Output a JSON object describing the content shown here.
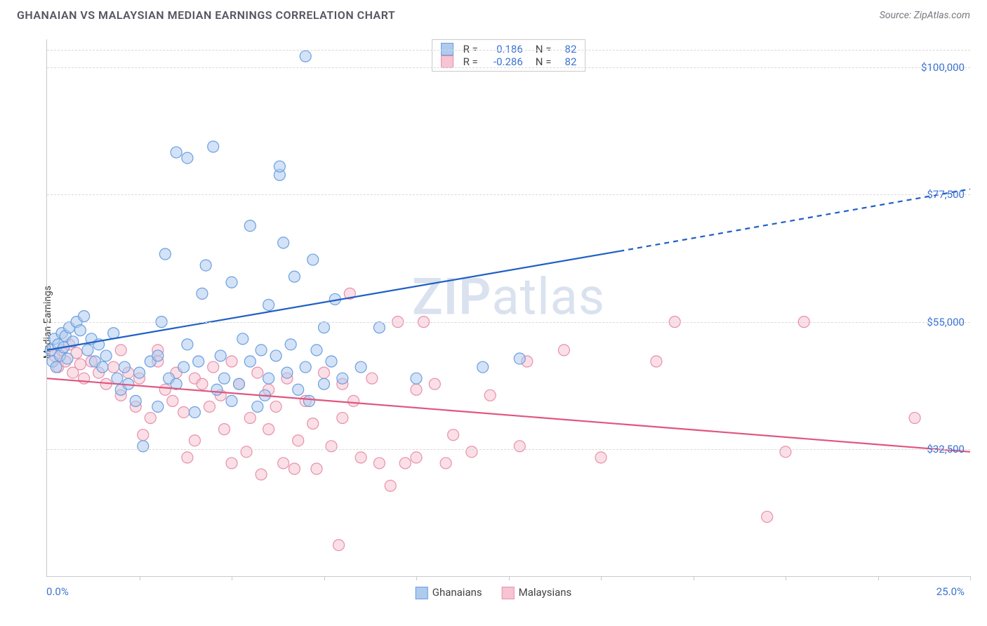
{
  "header": {
    "title": "GHANAIAN VS MALAYSIAN MEDIAN EARNINGS CORRELATION CHART",
    "source": "Source: ZipAtlas.com"
  },
  "chart": {
    "type": "scatter",
    "ylabel": "Median Earnings",
    "watermark": {
      "bold": "ZIP",
      "rest": "atlas"
    },
    "xlim": [
      0,
      25
    ],
    "ylim": [
      10000,
      105000
    ],
    "x_tick_marks": [
      2.5,
      5,
      7.5,
      10,
      12.5,
      15,
      17.5,
      20,
      22.5,
      25
    ],
    "x_min_label": "0.0%",
    "x_max_label": "25.0%",
    "y_ticks": [
      {
        "v": 32500,
        "label": "$32,500"
      },
      {
        "v": 55000,
        "label": "$55,000"
      },
      {
        "v": 77500,
        "label": "$77,500"
      },
      {
        "v": 100000,
        "label": "$100,000"
      }
    ],
    "colors": {
      "grid": "#d8d8dd",
      "axis": "#c9c9cf",
      "tick_text": "#3b73d1",
      "series_a_fill": "#aecbee",
      "series_a_stroke": "#6a9fe0",
      "series_a_line": "#1f5fc4",
      "series_b_fill": "#f6c4d2",
      "series_b_stroke": "#e88fa9",
      "series_b_line": "#e0567f"
    },
    "marker": {
      "radius": 8,
      "fill_opacity": 0.55,
      "stroke_width": 1.2
    },
    "correlation_box": {
      "rows": [
        {
          "series": "a",
          "r_label": "R =",
          "r": "0.186",
          "n_label": "N =",
          "n": "82"
        },
        {
          "series": "b",
          "r_label": "R =",
          "r": "-0.286",
          "n_label": "N =",
          "n": "82"
        }
      ]
    },
    "bottom_legend": [
      {
        "series": "a",
        "label": "Ghanaians"
      },
      {
        "series": "b",
        "label": "Malaysians"
      }
    ],
    "trend_lines": {
      "a": {
        "solid": [
          [
            0,
            50000
          ],
          [
            15.5,
            67500
          ]
        ],
        "dashed": [
          [
            15.5,
            67500
          ],
          [
            25,
            78500
          ]
        ]
      },
      "b": {
        "solid": [
          [
            0,
            45000
          ],
          [
            25,
            32000
          ]
        ]
      }
    },
    "series": {
      "a": [
        [
          0.1,
          50000
        ],
        [
          0.15,
          48000
        ],
        [
          0.2,
          52000
        ],
        [
          0.25,
          47000
        ],
        [
          0.3,
          51000
        ],
        [
          0.35,
          49000
        ],
        [
          0.4,
          53000
        ],
        [
          0.45,
          50500
        ],
        [
          0.5,
          52500
        ],
        [
          0.55,
          48500
        ],
        [
          0.6,
          54000
        ],
        [
          0.7,
          51500
        ],
        [
          0.8,
          55000
        ],
        [
          0.9,
          53500
        ],
        [
          1.0,
          56000
        ],
        [
          1.1,
          50000
        ],
        [
          1.2,
          52000
        ],
        [
          1.3,
          48000
        ],
        [
          1.4,
          51000
        ],
        [
          1.5,
          47000
        ],
        [
          1.6,
          49000
        ],
        [
          1.8,
          53000
        ],
        [
          1.9,
          45000
        ],
        [
          2.0,
          43000
        ],
        [
          2.1,
          47000
        ],
        [
          2.2,
          44000
        ],
        [
          2.4,
          41000
        ],
        [
          2.5,
          46000
        ],
        [
          2.6,
          33000
        ],
        [
          2.8,
          48000
        ],
        [
          3.0,
          40000
        ],
        [
          3.0,
          49000
        ],
        [
          3.1,
          55000
        ],
        [
          3.2,
          67000
        ],
        [
          3.3,
          45000
        ],
        [
          3.5,
          44000
        ],
        [
          3.5,
          85000
        ],
        [
          3.7,
          47000
        ],
        [
          3.8,
          51000
        ],
        [
          3.8,
          84000
        ],
        [
          4.0,
          39000
        ],
        [
          4.1,
          48000
        ],
        [
          4.2,
          60000
        ],
        [
          4.3,
          65000
        ],
        [
          4.5,
          86000
        ],
        [
          4.6,
          43000
        ],
        [
          4.7,
          49000
        ],
        [
          4.8,
          45000
        ],
        [
          5.0,
          41000
        ],
        [
          5.0,
          62000
        ],
        [
          5.2,
          44000
        ],
        [
          5.3,
          52000
        ],
        [
          5.5,
          48000
        ],
        [
          5.5,
          72000
        ],
        [
          5.7,
          40000
        ],
        [
          5.8,
          50000
        ],
        [
          5.9,
          42000
        ],
        [
          6.0,
          45000
        ],
        [
          6.0,
          58000
        ],
        [
          6.2,
          49000
        ],
        [
          6.3,
          81000
        ],
        [
          6.3,
          82500
        ],
        [
          6.4,
          69000
        ],
        [
          6.5,
          46000
        ],
        [
          6.6,
          51000
        ],
        [
          6.7,
          63000
        ],
        [
          6.8,
          43000
        ],
        [
          7.0,
          47000
        ],
        [
          7.0,
          102000
        ],
        [
          7.1,
          41000
        ],
        [
          7.2,
          66000
        ],
        [
          7.3,
          50000
        ],
        [
          7.5,
          44000
        ],
        [
          7.5,
          54000
        ],
        [
          7.7,
          48000
        ],
        [
          7.8,
          59000
        ],
        [
          8.0,
          45000
        ],
        [
          8.5,
          47000
        ],
        [
          9.0,
          54000
        ],
        [
          10.0,
          45000
        ],
        [
          11.8,
          47000
        ],
        [
          12.8,
          48500
        ]
      ],
      "b": [
        [
          0.2,
          49000
        ],
        [
          0.3,
          47000
        ],
        [
          0.4,
          50000
        ],
        [
          0.5,
          48000
        ],
        [
          0.6,
          51000
        ],
        [
          0.7,
          46000
        ],
        [
          0.8,
          49500
        ],
        [
          0.9,
          47500
        ],
        [
          1.0,
          45000
        ],
        [
          1.2,
          48000
        ],
        [
          1.4,
          46000
        ],
        [
          1.6,
          44000
        ],
        [
          1.8,
          47000
        ],
        [
          2.0,
          42000
        ],
        [
          2.0,
          50000
        ],
        [
          2.2,
          46000
        ],
        [
          2.4,
          40000
        ],
        [
          2.5,
          45000
        ],
        [
          2.6,
          35000
        ],
        [
          2.8,
          38000
        ],
        [
          3.0,
          48000
        ],
        [
          3.0,
          50000
        ],
        [
          3.2,
          43000
        ],
        [
          3.4,
          41000
        ],
        [
          3.5,
          46000
        ],
        [
          3.7,
          39000
        ],
        [
          3.8,
          31000
        ],
        [
          4.0,
          45000
        ],
        [
          4.0,
          34000
        ],
        [
          4.2,
          44000
        ],
        [
          4.4,
          40000
        ],
        [
          4.5,
          47000
        ],
        [
          4.7,
          42000
        ],
        [
          4.8,
          36000
        ],
        [
          5.0,
          48000
        ],
        [
          5.0,
          30000
        ],
        [
          5.2,
          44000
        ],
        [
          5.4,
          32000
        ],
        [
          5.5,
          38000
        ],
        [
          5.7,
          46000
        ],
        [
          5.8,
          28000
        ],
        [
          6.0,
          43000
        ],
        [
          6.0,
          36000
        ],
        [
          6.2,
          40000
        ],
        [
          6.4,
          30000
        ],
        [
          6.5,
          45000
        ],
        [
          6.7,
          29000
        ],
        [
          6.8,
          34000
        ],
        [
          7.0,
          41000
        ],
        [
          7.2,
          37000
        ],
        [
          7.3,
          29000
        ],
        [
          7.5,
          46000
        ],
        [
          7.7,
          33000
        ],
        [
          7.9,
          15500
        ],
        [
          8.0,
          44000
        ],
        [
          8.0,
          38000
        ],
        [
          8.2,
          60000
        ],
        [
          8.3,
          41000
        ],
        [
          8.5,
          31000
        ],
        [
          8.8,
          45000
        ],
        [
          9.0,
          30000
        ],
        [
          9.3,
          26000
        ],
        [
          9.5,
          55000
        ],
        [
          9.7,
          30000
        ],
        [
          10.0,
          43000
        ],
        [
          10.0,
          31000
        ],
        [
          10.2,
          55000
        ],
        [
          10.5,
          44000
        ],
        [
          10.8,
          30000
        ],
        [
          11.0,
          35000
        ],
        [
          11.5,
          32000
        ],
        [
          12.0,
          42000
        ],
        [
          12.8,
          33000
        ],
        [
          13.0,
          48000
        ],
        [
          14.0,
          50000
        ],
        [
          15.0,
          31000
        ],
        [
          16.5,
          48000
        ],
        [
          17.0,
          55000
        ],
        [
          19.5,
          20500
        ],
        [
          20.0,
          32000
        ],
        [
          20.5,
          55000
        ],
        [
          23.5,
          38000
        ]
      ]
    }
  }
}
